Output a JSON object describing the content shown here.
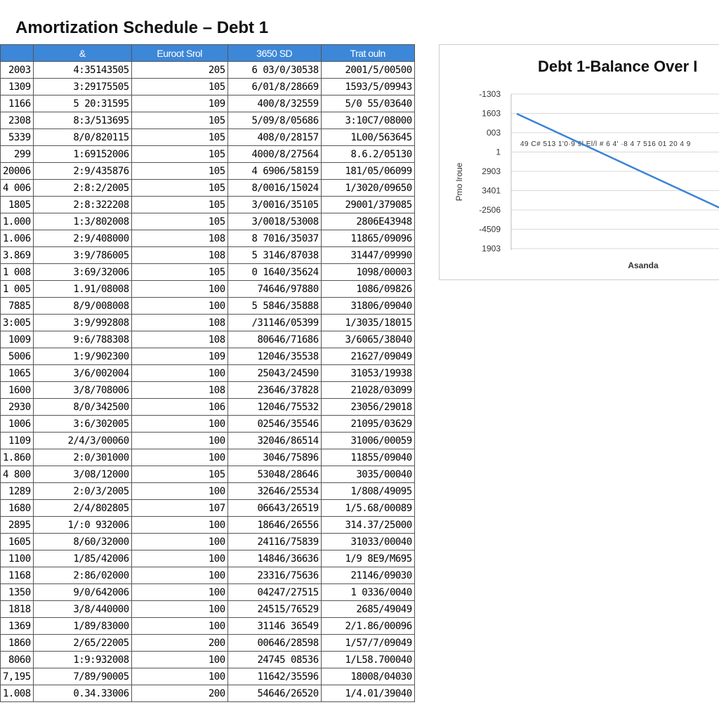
{
  "title": "Amortization Schedule – Debt 1",
  "table": {
    "headers": [
      "",
      "&",
      "Euroot Srol",
      "3650 SD",
      "Trat ouln"
    ],
    "rows": [
      [
        "2003",
        "4:35143505",
        "205",
        "6 03/0/30538",
        "2001/5/00500"
      ],
      [
        "1309",
        "3:29175505",
        "105",
        "6/01/8/28669",
        "1593/5/09943"
      ],
      [
        "1166",
        "5 20:31595",
        "109",
        "400/8/32559",
        "5/0 55/03640"
      ],
      [
        "2308",
        "8:3/513695",
        "105",
        "5/09/8/05686",
        "3:10C7/08000"
      ],
      [
        "5339",
        "8/0/820115",
        "105",
        "408/0/28157",
        "1L00/563645"
      ],
      [
        "299",
        "1:69152006",
        "105",
        "4000/8/27564",
        "8.6.2/05130"
      ],
      [
        "20006",
        "2:9/435876",
        "105",
        "4 6906/58159",
        "181/05/06099"
      ],
      [
        "4 006",
        "2:8:2/2005",
        "105",
        "8/0016/15024",
        "1/3020/09650"
      ],
      [
        "1805",
        "2:8:322208",
        "105",
        "3/0016/35105",
        "29001/379085"
      ],
      [
        "1.000",
        "1:3/802008",
        "105",
        "3/0018/53008",
        "2806E43948"
      ],
      [
        "1.006",
        "2:9/408000",
        "108",
        "8 7016/35037",
        "11865/09096"
      ],
      [
        "3.869",
        "3:9/786005",
        "108",
        "5 3146/87038",
        "31447/09990"
      ],
      [
        "1 008",
        "3:69/32006",
        "105",
        "0 1640/35624",
        "1098/00003"
      ],
      [
        "1 005",
        "1.91/08008",
        "100",
        "74646/97880",
        "1086/09826"
      ],
      [
        "7885",
        "8/9/008008",
        "100",
        "5 5846/35888",
        "31806/09040"
      ],
      [
        "3:005",
        "3:9/992808",
        "108",
        "/31146/05399",
        "1/3035/18015"
      ],
      [
        "1009",
        "9:6/788308",
        "108",
        "80646/71686",
        "3/6065/38040"
      ],
      [
        "5006",
        "1:9/902300",
        "109",
        "12046/35538",
        "21627/09049"
      ],
      [
        "1065",
        "3/6/002004",
        "100",
        "25043/24590",
        "31053/19938"
      ],
      [
        "1600",
        "3/8/708006",
        "108",
        "23646/37828",
        "21028/03099"
      ],
      [
        "2930",
        "8/0/342500",
        "106",
        "12046/75532",
        "23056/29018"
      ],
      [
        "1006",
        "3:6/302005",
        "100",
        "02546/35546",
        "21095/03629"
      ],
      [
        "1109",
        "2/4/3/00060",
        "100",
        "32046/86514",
        "31006/00059"
      ],
      [
        "1.860",
        "2:0/301000",
        "100",
        "3046/75896",
        "11855/09040"
      ],
      [
        "4 800",
        "3/08/12000",
        "105",
        "53048/28646",
        "3035/00040"
      ],
      [
        "1289",
        "2:0/3/2005",
        "100",
        "32646/25534",
        "1/808/49095"
      ],
      [
        "1680",
        "2/4/802805",
        "107",
        "06643/26519",
        "1/5.68/00089"
      ],
      [
        "2895",
        "1/:0 932006",
        "100",
        "18646/26556",
        "314.37/25000"
      ],
      [
        "1605",
        "8/60/32000",
        "100",
        "24116/75839",
        "31033/00040"
      ],
      [
        "1100",
        "1/85/42006",
        "100",
        "14846/36636",
        "1/9 8E9/M695"
      ],
      [
        "1168",
        "2:86/02000",
        "100",
        "23316/75636",
        "21146/09030"
      ],
      [
        "1350",
        "9/0/642006",
        "100",
        "04247/27515",
        "1 0336/0040"
      ],
      [
        "1818",
        "3/8/440000",
        "100",
        "24515/76529",
        "2685/49049"
      ],
      [
        "1369",
        "1/89/83000",
        "100",
        "31146 36549",
        "2/1.86/00096"
      ],
      [
        "1860",
        "2/65/22005",
        "200",
        "00646/28598",
        "1/57/7/09049"
      ],
      [
        "8060",
        "1:9:932008",
        "100",
        "24745 08536",
        "1/L58.700040"
      ],
      [
        "7,195",
        "7/89/90005",
        "100",
        "11642/35596",
        "18008/04030"
      ],
      [
        "1.008",
        "0.34.33006",
        "200",
        "54646/26520",
        "1/4.01/39040"
      ]
    ]
  },
  "chart": {
    "title": "Debt 1-Balance Over I",
    "y_axis_label": "Pmo lroue",
    "x_axis_label": "Asanda",
    "x_tick_text": "49 C# 513 1'0·9 9l El/l # 6 4' ·8 4 7 516 01 20 4 9",
    "y_labels": [
      "-1303",
      "1603",
      "003",
      "1",
      "2903",
      "3401",
      "-2506",
      "-4509",
      "1903"
    ]
  }
}
